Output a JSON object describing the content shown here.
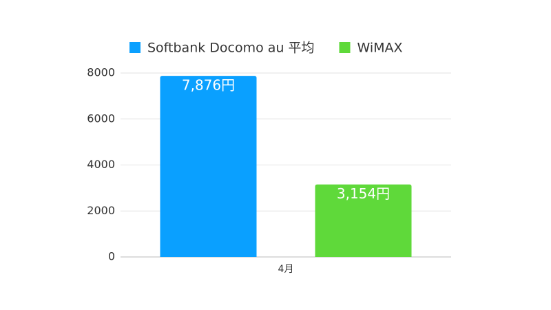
{
  "chart_data": {
    "type": "bar",
    "categories": [
      "4月"
    ],
    "series": [
      {
        "name": "Softbank Docomo au 平均",
        "color": "#0aa0ff",
        "values": [
          7876
        ],
        "value_labels": [
          "7,876円"
        ]
      },
      {
        "name": "WiMAX",
        "color": "#5fd93a",
        "values": [
          3154
        ],
        "value_labels": [
          "3,154円"
        ]
      }
    ],
    "ylim": [
      0,
      8000
    ],
    "yticks": [
      0,
      2000,
      4000,
      6000,
      8000
    ],
    "grid": true,
    "legend": "top"
  }
}
